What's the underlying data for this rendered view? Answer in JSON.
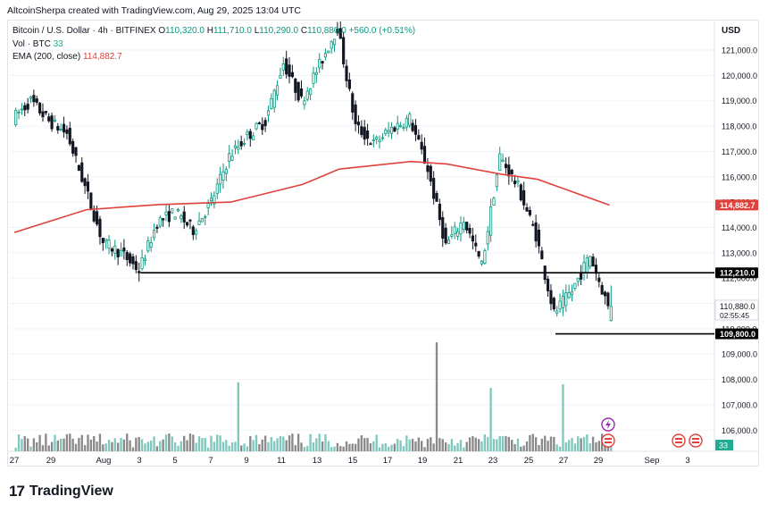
{
  "header": {
    "text": "AltcoinSherpa created with TradingView.com, Aug 29, 2025 13:04 UTC"
  },
  "legend": {
    "symbol": "Bitcoin / U.S. Dollar · 4h · BITFINEX",
    "ohlc": {
      "open_label": "O",
      "open": "110,320.0",
      "high_label": "H",
      "high": "111,710.0",
      "low_label": "L",
      "low": "110,290.0",
      "close_label": "C",
      "close": "110,880.0",
      "change": "+560.0 (+0.51%)"
    },
    "volume": {
      "label": "Vol · BTC",
      "value": "33"
    },
    "ema": {
      "label": "EMA (200, close)",
      "value": "114,882.7"
    }
  },
  "price_axis": {
    "currency": "USD",
    "ticks": [
      "121,000.0",
      "120,000.0",
      "119,000.0",
      "118,000.0",
      "117,000.0",
      "116,000.0",
      "115,000.0",
      "114,000.0",
      "113,000.0",
      "112,000.0",
      "111,000.0",
      "110,000.0",
      "109,000.0",
      "108,000.0",
      "107,000.0",
      "106,000.0"
    ],
    "badges": {
      "ema": "114,882.7",
      "resistance": "112,210.0",
      "last_price": "110,880.0",
      "countdown": "02:55:45",
      "support": "109,800.0",
      "volume": "33"
    }
  },
  "time_axis": {
    "labels": [
      "27",
      "29",
      "Aug",
      "3",
      "5",
      "7",
      "9",
      "11",
      "13",
      "15",
      "17",
      "19",
      "21",
      "23",
      "25",
      "27",
      "29",
      "Sep",
      "3"
    ]
  },
  "colors": {
    "bull": "#089981",
    "bear": "#131722",
    "ema": "#e0413b",
    "vol_bull": "#7fc8bd",
    "vol_bear": "#8a8a8a",
    "grid": "#f0f3fa"
  },
  "brand": {
    "mark": "17",
    "name": "TradingView"
  },
  "chart_data": {
    "type": "candlestick",
    "symbol": "BTCUSD",
    "timeframe": "4h",
    "ylim": [
      105500,
      122000
    ],
    "horizontal_levels": [
      112210,
      109800
    ],
    "ema_200": [
      {
        "date": "2025-07-27",
        "value": 113800
      },
      {
        "date": "2025-07-31",
        "value": 114700
      },
      {
        "date": "2025-08-04",
        "value": 114900
      },
      {
        "date": "2025-08-08",
        "value": 115000
      },
      {
        "date": "2025-08-12",
        "value": 115700
      },
      {
        "date": "2025-08-14",
        "value": 116300
      },
      {
        "date": "2025-08-18",
        "value": 116600
      },
      {
        "date": "2025-08-20",
        "value": 116500
      },
      {
        "date": "2025-08-23",
        "value": 116100
      },
      {
        "date": "2025-08-25",
        "value": 115900
      },
      {
        "date": "2025-08-29",
        "value": 114880
      }
    ],
    "daily_price_path": [
      {
        "date": "2025-07-27",
        "value": 118300
      },
      {
        "date": "2025-07-28",
        "value": 119000
      },
      {
        "date": "2025-07-29",
        "value": 118200
      },
      {
        "date": "2025-07-30",
        "value": 117700
      },
      {
        "date": "2025-07-31",
        "value": 115600
      },
      {
        "date": "2025-08-01",
        "value": 113400
      },
      {
        "date": "2025-08-02",
        "value": 113000
      },
      {
        "date": "2025-08-03",
        "value": 112300
      },
      {
        "date": "2025-08-04",
        "value": 114200
      },
      {
        "date": "2025-08-05",
        "value": 114600
      },
      {
        "date": "2025-08-06",
        "value": 113900
      },
      {
        "date": "2025-08-07",
        "value": 115000
      },
      {
        "date": "2025-08-08",
        "value": 116800
      },
      {
        "date": "2025-08-09",
        "value": 117600
      },
      {
        "date": "2025-08-10",
        "value": 118200
      },
      {
        "date": "2025-08-11",
        "value": 120500
      },
      {
        "date": "2025-08-12",
        "value": 119000
      },
      {
        "date": "2025-08-13",
        "value": 120400
      },
      {
        "date": "2025-08-14",
        "value": 121900
      },
      {
        "date": "2025-08-15",
        "value": 118000
      },
      {
        "date": "2025-08-16",
        "value": 117300
      },
      {
        "date": "2025-08-17",
        "value": 117900
      },
      {
        "date": "2025-08-18",
        "value": 118300
      },
      {
        "date": "2025-08-19",
        "value": 116300
      },
      {
        "date": "2025-08-20",
        "value": 113300
      },
      {
        "date": "2025-08-21",
        "value": 114300
      },
      {
        "date": "2025-08-22",
        "value": 112500
      },
      {
        "date": "2025-08-23",
        "value": 116800
      },
      {
        "date": "2025-08-24",
        "value": 115600
      },
      {
        "date": "2025-08-25",
        "value": 113700
      },
      {
        "date": "2025-08-26",
        "value": 110600
      },
      {
        "date": "2025-08-27",
        "value": 111500
      },
      {
        "date": "2025-08-28",
        "value": 112900
      },
      {
        "date": "2025-08-29",
        "value": 110880
      }
    ],
    "volume_spikes": [
      {
        "date": "2025-08-08",
        "value": "high"
      },
      {
        "date": "2025-08-19",
        "value": "highest"
      },
      {
        "date": "2025-08-22",
        "value": "high"
      },
      {
        "date": "2025-08-26",
        "value": "high"
      }
    ]
  }
}
